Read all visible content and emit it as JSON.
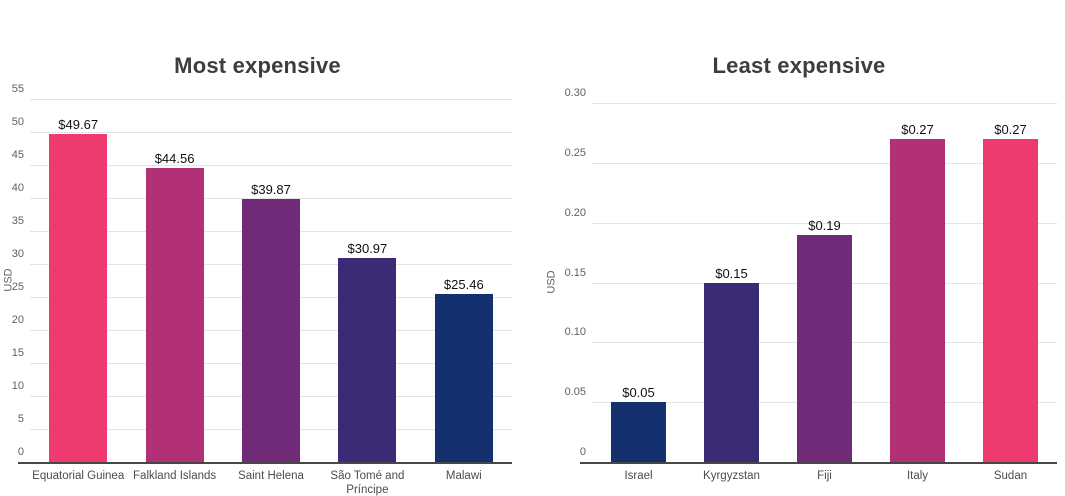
{
  "theme": {
    "background": "#ffffff",
    "grid_color": "#e4e4e4",
    "axis_color": "#474747",
    "title_color": "#3d3d3d",
    "tick_color": "#606060",
    "xlabel_color": "#4c4c4c",
    "value_color": "#111111"
  },
  "chart_data": [
    {
      "type": "bar",
      "title": "Most expensive",
      "xlabel": "",
      "ylabel": "USD",
      "categories": [
        "Equatorial Guinea",
        "Falkland Islands",
        "Saint Helena",
        "São Tomé and Príncipe",
        "Malawi"
      ],
      "values": [
        49.67,
        44.56,
        39.87,
        30.97,
        25.46
      ],
      "value_labels": [
        "$49.67",
        "$44.56",
        "$39.87",
        "$30.97",
        "$25.46"
      ],
      "bar_colors": [
        "#ee3a6e",
        "#b23176",
        "#6f2a78",
        "#3b2a76",
        "#15306e"
      ],
      "ylim": [
        0,
        55
      ],
      "yticks": [
        0,
        5,
        10,
        15,
        20,
        25,
        30,
        35,
        40,
        45,
        50,
        55
      ],
      "ytick_labels": [
        "0",
        "5",
        "10",
        "15",
        "20",
        "25",
        "30",
        "35",
        "40",
        "45",
        "50",
        "55"
      ],
      "grid": true,
      "legend": "none"
    },
    {
      "type": "bar",
      "title": "Least expensive",
      "xlabel": "",
      "ylabel": "USD",
      "categories": [
        "Israel",
        "Kyrgyzstan",
        "Fiji",
        "Italy",
        "Sudan"
      ],
      "values": [
        0.05,
        0.15,
        0.19,
        0.27,
        0.27
      ],
      "value_labels": [
        "$0.05",
        "$0.15",
        "$0.19",
        "$0.27",
        "$0.27"
      ],
      "bar_colors": [
        "#15306e",
        "#3b2a76",
        "#6f2a78",
        "#b23176",
        "#ee3a6e"
      ],
      "ylim": [
        0,
        0.3
      ],
      "yticks": [
        0,
        0.05,
        0.1,
        0.15,
        0.2,
        0.25,
        0.3
      ],
      "ytick_labels": [
        "0",
        "0.05",
        "0.10",
        "0.15",
        "0.20",
        "0.25",
        "0.30"
      ],
      "grid": true,
      "legend": "none"
    }
  ]
}
